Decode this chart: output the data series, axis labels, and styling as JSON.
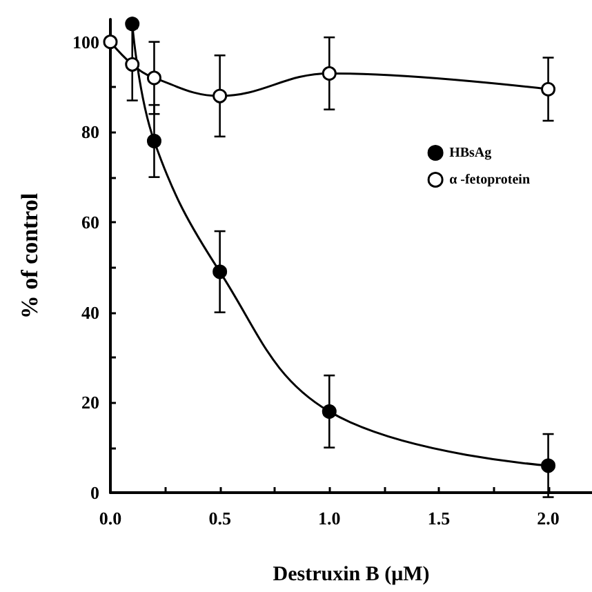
{
  "chart_data": {
    "type": "line",
    "xlabel": "Destruxin B (μM)",
    "ylabel": "% of control",
    "x": [
      0.1,
      0.2,
      0.5,
      1.0,
      2.0
    ],
    "series": [
      {
        "name": "HBsAg",
        "color": "#000000",
        "values": [
          104,
          78,
          49,
          18,
          6
        ],
        "errors": [
          null,
          8,
          9,
          8,
          7
        ]
      },
      {
        "name": "α -fetoprotein",
        "color": "#000000",
        "x": [
          0,
          0.1,
          0.2,
          0.5,
          1.0,
          2.0
        ],
        "values": [
          100,
          95,
          92,
          88,
          93,
          89.5
        ],
        "errors": [
          null,
          8,
          8,
          9,
          8,
          7
        ]
      }
    ],
    "xlim": [
      0,
      2.2
    ],
    "ylim": [
      0,
      105
    ],
    "xticks": [
      {
        "value": 0,
        "label": "0.0"
      },
      {
        "value": 0.25,
        "label": null
      },
      {
        "value": 0.5,
        "label": "0.5"
      },
      {
        "value": 0.75,
        "label": null
      },
      {
        "value": 1,
        "label": "1.0"
      },
      {
        "value": 1.25,
        "label": null
      },
      {
        "value": 1.5,
        "label": "1.5"
      },
      {
        "value": 1.75,
        "label": null
      },
      {
        "value": 2,
        "label": "2.0"
      }
    ],
    "yticks": [
      0,
      {
        "value": 10,
        "label": null
      },
      20,
      {
        "value": 30,
        "label": null
      },
      40,
      {
        "value": 50,
        "label": null
      },
      60,
      {
        "value": 70,
        "label": null
      },
      80,
      {
        "value": 90,
        "label": null
      },
      100
    ],
    "legend": "top right",
    "marker": "circle",
    "line_style": "solid",
    "grid": false
  }
}
